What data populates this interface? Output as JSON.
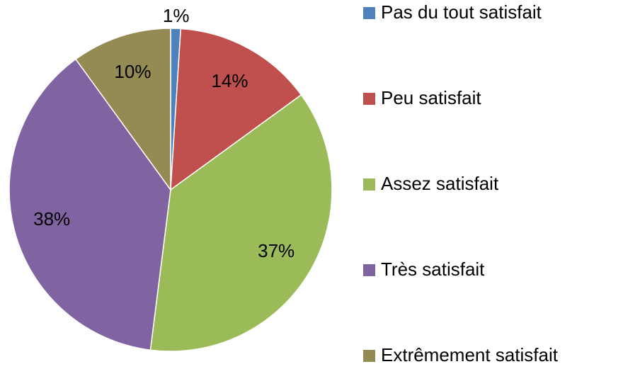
{
  "chart_data": {
    "type": "pie",
    "categories": [
      "Pas du tout satisfait",
      "Peu satisfait",
      "Assez satisfait",
      "Très satisfait",
      "Extrêmement satisfait"
    ],
    "values": [
      1,
      14,
      37,
      38,
      10
    ],
    "value_labels": [
      "1%",
      "14%",
      "37%",
      "38%",
      "10%"
    ],
    "colors": [
      "#4f81bd",
      "#c0504d",
      "#9bbb59",
      "#8064a2",
      "#948a54"
    ],
    "legend": "right"
  }
}
